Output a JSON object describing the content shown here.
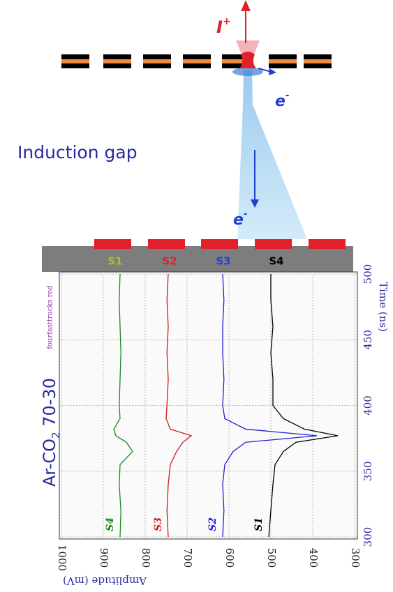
{
  "diagram": {
    "ion_label": {
      "base": "I",
      "sup": "+"
    },
    "electron_label_top": {
      "base": "e",
      "sup": "-"
    },
    "electron_label_bottom": {
      "base": "e",
      "sup": "-"
    },
    "gap_label": "Induction gap",
    "strips": [
      "S1",
      "S2",
      "S3",
      "S4"
    ]
  },
  "chart_data": {
    "type": "line",
    "x_label": "Time (ns)",
    "y_label": "Amplitude (mV)",
    "gas_label": {
      "prefix": "Ar-CO",
      "sub": "2",
      "suffix": " 70-30"
    },
    "run_label": "fourfasttracks red",
    "x": [
      300,
      320,
      340,
      355,
      365,
      372,
      377,
      382,
      390,
      400,
      420,
      440,
      460,
      480,
      500
    ],
    "xlim": [
      300,
      500
    ],
    "xticks": [
      300,
      350,
      400,
      450,
      500
    ],
    "ylim": [
      1000,
      300
    ],
    "yticks": [
      1000,
      900,
      800,
      700,
      600,
      500,
      400,
      300
    ],
    "grid": true,
    "series": [
      {
        "name": "S1",
        "color": "#000000",
        "values": [
          505,
          500,
          495,
          490,
          470,
          440,
          340,
          420,
          470,
          495,
          495,
          500,
          495,
          500,
          500
        ]
      },
      {
        "name": "S2",
        "color": "#1f1fd0",
        "values": [
          615,
          612,
          615,
          610,
          590,
          560,
          390,
          560,
          610,
          615,
          612,
          615,
          615,
          612,
          615
        ]
      },
      {
        "name": "S3",
        "color": "#d01a1a",
        "values": [
          745,
          748,
          745,
          740,
          725,
          710,
          690,
          740,
          750,
          748,
          745,
          748,
          745,
          748,
          745
        ]
      },
      {
        "name": "S4",
        "color": "#1a8a1a",
        "values": [
          860,
          858,
          862,
          860,
          830,
          845,
          870,
          875,
          860,
          862,
          860,
          858,
          860,
          862,
          860
        ]
      }
    ]
  }
}
